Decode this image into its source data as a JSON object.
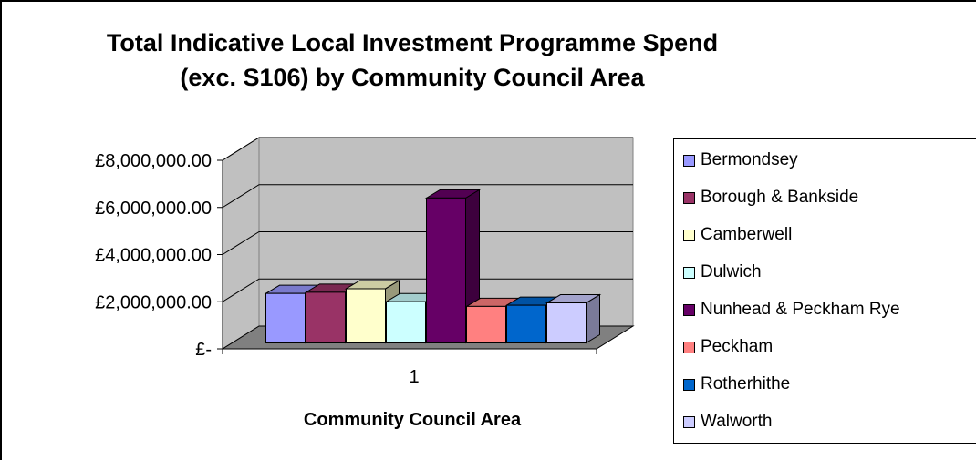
{
  "chart_data": {
    "type": "bar",
    "title": [
      "Total Indicative Local Investment Programme Spend",
      "(exc. S106) by Community Council Area"
    ],
    "xlabel": "Community Council Area",
    "ylabel": "",
    "categories": [
      "1"
    ],
    "ylim": [
      0,
      8000000
    ],
    "yticks": [
      0,
      2000000,
      4000000,
      6000000,
      8000000
    ],
    "ytick_labels": [
      "£-",
      "£2,000,000.00",
      "£4,000,000.00",
      "£6,000,000.00",
      "£8,000,000.00"
    ],
    "grid": true,
    "three_d": true,
    "legend_position": "right",
    "series": [
      {
        "name": "Bermondsey",
        "values": [
          2100000
        ],
        "color": "#9999ff"
      },
      {
        "name": "Borough & Bankside",
        "values": [
          2150000
        ],
        "color": "#993366"
      },
      {
        "name": "Camberwell",
        "values": [
          2300000
        ],
        "color": "#ffffcc"
      },
      {
        "name": "Dulwich",
        "values": [
          1750000
        ],
        "color": "#ccffff"
      },
      {
        "name": "Nunhead & Peckham Rye",
        "values": [
          6150000
        ],
        "color": "#660066"
      },
      {
        "name": "Peckham",
        "values": [
          1550000
        ],
        "color": "#ff8080"
      },
      {
        "name": "Rotherhithe",
        "values": [
          1600000
        ],
        "color": "#0066cc"
      },
      {
        "name": "Walworth",
        "values": [
          1700000
        ],
        "color": "#ccccff"
      }
    ]
  }
}
